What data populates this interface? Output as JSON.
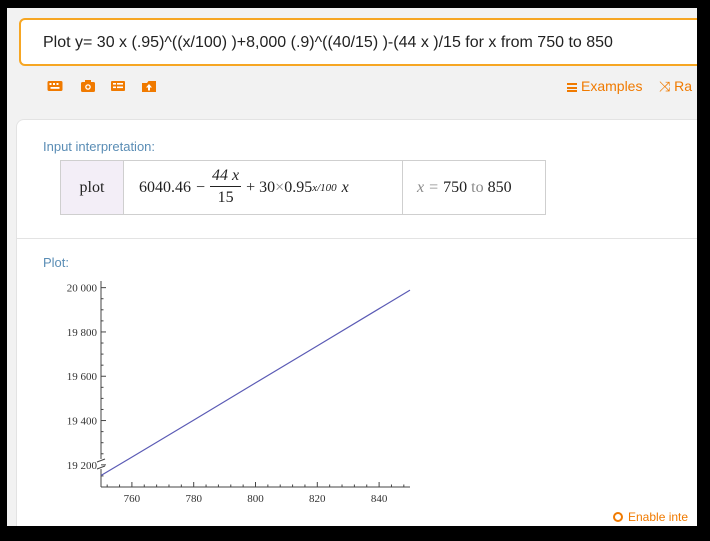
{
  "search": {
    "query": "Plot y= 30 x (.95)^((x/100) )+8,000 (.9)^((40/15) )-(44 x )/15 for x from 750 to 850"
  },
  "toolbar": {
    "icons": [
      "keyboard-icon",
      "camera-icon",
      "grid-icon",
      "upload-icon"
    ],
    "examples_label": "Examples",
    "random_label": "Ra"
  },
  "input_interpretation": {
    "title": "Input interpretation:",
    "command": "plot",
    "expr_constant": "6040.46",
    "expr_minus": "−",
    "frac_num": "44 x",
    "frac_den": "15",
    "expr_rest_prefix": "+ 30",
    "times": "×",
    "base": "0.95",
    "exponent": "x/100",
    "trail_var": "x",
    "range_var": "x",
    "range_eq": "=",
    "range_start": "750",
    "range_to": "to",
    "range_end": "850"
  },
  "plot": {
    "title": "Plot:"
  },
  "chart_data": {
    "type": "line",
    "title": "",
    "xlabel": "",
    "ylabel": "",
    "xlim": [
      750,
      850
    ],
    "ylim": [
      19100,
      20030
    ],
    "x_ticks": [
      760,
      780,
      800,
      820,
      840
    ],
    "x_tick_labels": [
      "760",
      "780",
      "800",
      "820",
      "840"
    ],
    "y_ticks": [
      19200,
      19400,
      19600,
      19800,
      20000
    ],
    "y_tick_labels": [
      "19 200",
      "19 400",
      "19 600",
      "19 800",
      "20 000"
    ],
    "axis_break": true,
    "grid": false,
    "series": [
      {
        "x": [
          750,
          760,
          780,
          800,
          820,
          840,
          850
        ],
        "y": [
          19152,
          19235,
          19402,
          19570,
          19737,
          19905,
          19989
        ],
        "color": "#5b5bb5"
      }
    ]
  },
  "footer": {
    "enable_label": "Enable inte"
  },
  "colors": {
    "accent": "#f07a00",
    "query_border": "#f6a623",
    "pod_title": "#5a8db5",
    "plot_line": "#5b5bb5"
  }
}
